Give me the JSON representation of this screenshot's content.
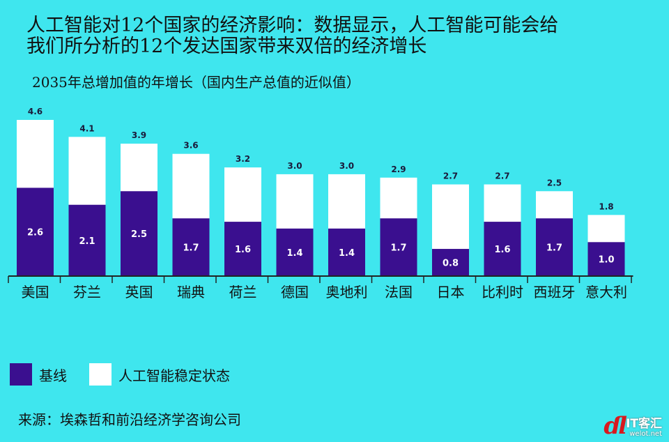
{
  "header": {
    "title_line1": "人工智能对12个国家的经济影响：数据显示，人工智能可能会给",
    "title_line2": "我们所分析的12个发达国家带来双倍的经济增长",
    "subtitle": "2035年总增加值的年增长（国内生产总值的近似值）"
  },
  "legend": {
    "baseline_label": "基线",
    "ai_label": "人工智能稳定状态"
  },
  "source": "来源：埃森哲和前沿经济学咨询公司",
  "watermark": {
    "name": "IT客汇",
    "url": "welot.net"
  },
  "colors": {
    "background": "#3fe6ee",
    "baseline": "#3a0f8f",
    "ai": "#ffffff",
    "axis": "#222222"
  },
  "chart_data": {
    "type": "bar",
    "stacked": true,
    "categories": [
      "美国",
      "芬兰",
      "英国",
      "瑞典",
      "荷兰",
      "德国",
      "奥地利",
      "法国",
      "日本",
      "比利时",
      "西班牙",
      "意大利"
    ],
    "series": [
      {
        "name": "基线",
        "values": [
          2.6,
          2.1,
          2.5,
          1.7,
          1.6,
          1.4,
          1.4,
          1.7,
          0.8,
          1.6,
          1.7,
          1.0
        ]
      }
    ],
    "totals": [
      4.6,
      4.1,
      3.9,
      3.6,
      3.2,
      3.0,
      3.0,
      2.9,
      2.7,
      2.7,
      2.5,
      1.8
    ],
    "total_series_name": "人工智能稳定状态",
    "ylim": [
      0,
      4.6
    ],
    "grid": false,
    "legend_position": "bottom-left"
  }
}
